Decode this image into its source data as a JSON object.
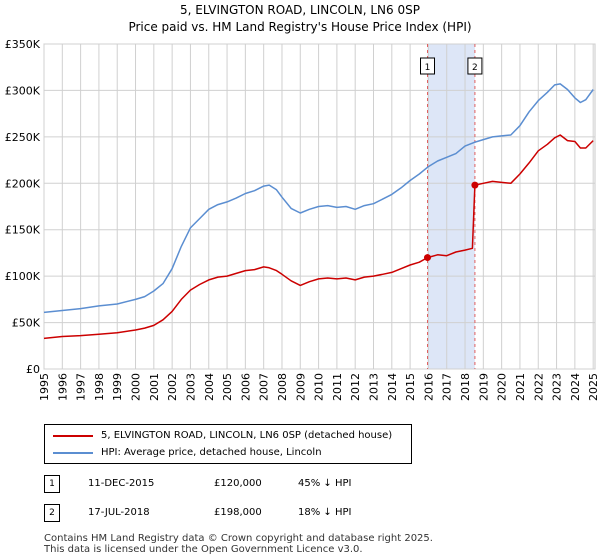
{
  "title": "5, ELVINGTON ROAD, LINCOLN, LN6 0SP",
  "subtitle": "Price paid vs. HM Land Registry's House Price Index (HPI)",
  "colors": {
    "property": "#cc0000",
    "hpi": "#5b8ed1",
    "shade": "#dde6f7",
    "vline": "#e06060",
    "grid": "#d0d0d0"
  },
  "chart_data": {
    "type": "line",
    "title": "5, ELVINGTON ROAD, LINCOLN, LN6 0SP",
    "subtitle": "Price paid vs. HM Land Registry's House Price Index (HPI)",
    "xlabel": "",
    "ylabel": "",
    "xlim": [
      1995,
      2025.1
    ],
    "ylim": [
      0,
      350000
    ],
    "yticks": [
      0,
      50000,
      100000,
      150000,
      200000,
      250000,
      300000,
      350000
    ],
    "ytick_labels": [
      "£0",
      "£50K",
      "£100K",
      "£150K",
      "£200K",
      "£250K",
      "£300K",
      "£350K"
    ],
    "xticks": [
      1995,
      1996,
      1997,
      1998,
      1999,
      2000,
      2001,
      2002,
      2003,
      2004,
      2005,
      2006,
      2007,
      2008,
      2009,
      2010,
      2011,
      2012,
      2013,
      2014,
      2015,
      2016,
      2017,
      2018,
      2019,
      2020,
      2021,
      2022,
      2023,
      2024,
      2025
    ],
    "xtick_labels": [
      "1995",
      "1996",
      "1997",
      "1998",
      "1999",
      "2000",
      "2001",
      "2002",
      "2003",
      "2004",
      "2005",
      "2006",
      "2007",
      "2008",
      "2009",
      "2010",
      "2011",
      "2012",
      "2013",
      "2014",
      "2015",
      "2016",
      "2017",
      "2018",
      "2019",
      "2020",
      "2021",
      "2022",
      "2023",
      "2024",
      "2025"
    ],
    "grid": true,
    "shaded_region": [
      2015.95,
      2018.54
    ],
    "series": [
      {
        "name": "5, ELVINGTON ROAD, LINCOLN, LN6 0SP (detached house)",
        "color": "#cc0000",
        "x": [
          1995,
          1996,
          1997,
          1998,
          1999,
          2000,
          2000.5,
          2001,
          2001.5,
          2002,
          2002.5,
          2003,
          2003.5,
          2004,
          2004.5,
          2005,
          2005.5,
          2006,
          2006.5,
          2007,
          2007.3,
          2007.7,
          2008,
          2008.5,
          2009,
          2009.5,
          2010,
          2010.5,
          2011,
          2011.5,
          2012,
          2012.5,
          2013,
          2013.5,
          2014,
          2014.5,
          2015,
          2015.5,
          2015.95,
          2016.5,
          2017,
          2017.5,
          2018,
          2018.4,
          2018.54,
          2019,
          2019.5,
          2020,
          2020.5,
          2021,
          2021.5,
          2022,
          2022.5,
          2022.9,
          2023.2,
          2023.6,
          2024,
          2024.3,
          2024.6,
          2025
        ],
        "y": [
          33000,
          35000,
          36000,
          37500,
          39000,
          42000,
          44000,
          47000,
          53000,
          62000,
          75000,
          85000,
          91000,
          96000,
          99000,
          100000,
          103000,
          106000,
          107000,
          110000,
          109000,
          106000,
          102000,
          95000,
          90000,
          94000,
          97000,
          98000,
          97000,
          98000,
          96000,
          99000,
          100000,
          102000,
          104000,
          108000,
          112000,
          115000,
          120000,
          123000,
          122000,
          126000,
          128000,
          130000,
          198000,
          200000,
          202000,
          201000,
          200000,
          210000,
          222000,
          235000,
          242000,
          249000,
          252000,
          246000,
          245000,
          238000,
          238000,
          246000
        ]
      },
      {
        "name": "HPI: Average price, detached house, Lincoln",
        "color": "#5b8ed1",
        "x": [
          1995,
          1996,
          1997,
          1998,
          1999,
          2000,
          2000.5,
          2001,
          2001.5,
          2002,
          2002.5,
          2003,
          2003.5,
          2004,
          2004.5,
          2005,
          2005.5,
          2006,
          2006.5,
          2007,
          2007.3,
          2007.7,
          2008,
          2008.5,
          2009,
          2009.5,
          2010,
          2010.5,
          2011,
          2011.5,
          2012,
          2012.5,
          2013,
          2013.5,
          2014,
          2014.5,
          2015,
          2015.5,
          2016,
          2016.5,
          2017,
          2017.5,
          2018,
          2018.5,
          2019,
          2019.5,
          2020,
          2020.5,
          2021,
          2021.5,
          2022,
          2022.5,
          2022.9,
          2023.2,
          2023.6,
          2024,
          2024.3,
          2024.6,
          2025
        ],
        "y": [
          61000,
          63000,
          65000,
          68000,
          70000,
          75000,
          78000,
          84000,
          92000,
          108000,
          132000,
          152000,
          162000,
          172000,
          177000,
          180000,
          184000,
          189000,
          192000,
          197000,
          198000,
          193000,
          185000,
          173000,
          168000,
          172000,
          175000,
          176000,
          174000,
          175000,
          172000,
          176000,
          178000,
          183000,
          188000,
          195000,
          203000,
          210000,
          218000,
          224000,
          228000,
          232000,
          240000,
          244000,
          247000,
          250000,
          251000,
          252000,
          262000,
          277000,
          289000,
          298000,
          306000,
          307000,
          301000,
          292000,
          287000,
          290000,
          301000
        ]
      }
    ],
    "markers": [
      {
        "label": "1",
        "x": 2015.95,
        "y": 120000
      },
      {
        "label": "2",
        "x": 2018.54,
        "y": 198000
      }
    ]
  },
  "legend": {
    "property_label": "5, ELVINGTON ROAD, LINCOLN, LN6 0SP (detached house)",
    "hpi_label": "HPI: Average price, detached house, Lincoln"
  },
  "transactions": [
    {
      "num": "1",
      "date": "11-DEC-2015",
      "price": "£120,000",
      "hpi": "45% ↓ HPI"
    },
    {
      "num": "2",
      "date": "17-JUL-2018",
      "price": "£198,000",
      "hpi": "18% ↓ HPI"
    }
  ],
  "footer": {
    "line1": "Contains HM Land Registry data © Crown copyright and database right 2025.",
    "line2": "This data is licensed under the Open Government Licence v3.0."
  }
}
